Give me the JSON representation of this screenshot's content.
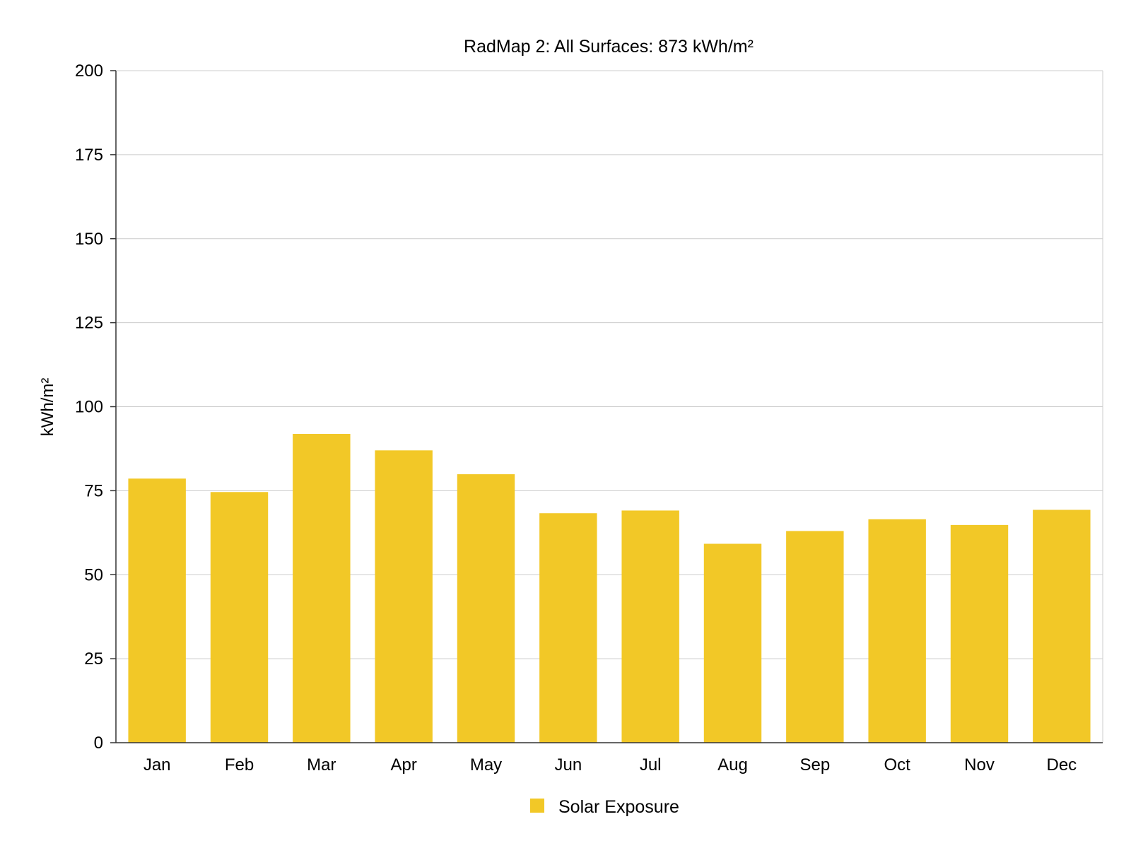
{
  "chart_data": {
    "type": "bar",
    "title": "RadMap 2: All Surfaces: 873 kWh/m²",
    "ylabel": "kWh/m²",
    "xlabel": "",
    "ylim": [
      0,
      200
    ],
    "yticks": [
      0,
      25,
      50,
      75,
      100,
      125,
      150,
      175,
      200
    ],
    "categories": [
      "Jan",
      "Feb",
      "Mar",
      "Apr",
      "May",
      "Jun",
      "Jul",
      "Aug",
      "Sep",
      "Oct",
      "Nov",
      "Dec"
    ],
    "series": [
      {
        "name": "Solar Exposure",
        "color": "#F2C827",
        "values": [
          78.6,
          74.6,
          91.9,
          87.0,
          79.9,
          68.3,
          69.1,
          59.2,
          63.0,
          66.5,
          64.8,
          69.3
        ]
      }
    ],
    "grid": true,
    "legend": "bottom-center"
  }
}
